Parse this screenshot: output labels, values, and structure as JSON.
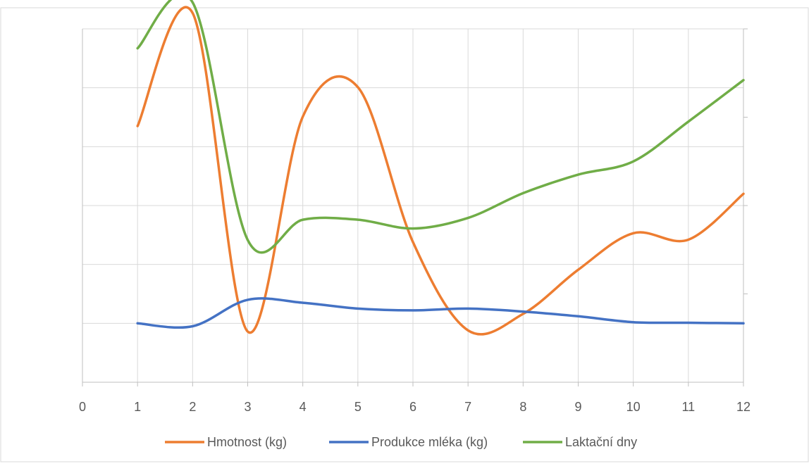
{
  "chart_data": {
    "type": "line",
    "smooth": true,
    "x": [
      1,
      2,
      3,
      4,
      5,
      6,
      7,
      8,
      9,
      10,
      11,
      12
    ],
    "xlim": [
      0,
      12
    ],
    "x_ticks": [
      "0",
      "1",
      "2",
      "3",
      "4",
      "5",
      "6",
      "7",
      "8",
      "9",
      "10",
      "11",
      "12"
    ],
    "y_axis_left": {
      "range": [
        0,
        600
      ],
      "tick_step": 100,
      "tick_labels_visible": false
    },
    "y_axis_right": {
      "range": [
        0,
        4000
      ],
      "tick_step": 1000,
      "tick_labels_visible": false
    },
    "grid": {
      "vertical": true,
      "horizontal": true
    },
    "legend": {
      "position": "bottom"
    },
    "series": [
      {
        "name": "Hmotnost (kg)",
        "color": "#ED7D31",
        "axis": "left",
        "values": [
          435,
          627,
          86,
          451,
          501,
          238,
          88,
          116,
          191,
          253,
          242,
          320
        ]
      },
      {
        "name": "Produkce mléka (kg)",
        "color": "#4472C4",
        "axis": "left",
        "values": [
          100,
          95,
          140,
          135,
          125,
          122,
          125,
          120,
          112,
          102,
          101,
          100
        ]
      },
      {
        "name": "Laktační dny",
        "color": "#70AD47",
        "axis": "right",
        "values": [
          3780,
          4300,
          1610,
          1840,
          1840,
          1740,
          1860,
          2140,
          2350,
          2500,
          2950,
          3420
        ]
      }
    ]
  }
}
